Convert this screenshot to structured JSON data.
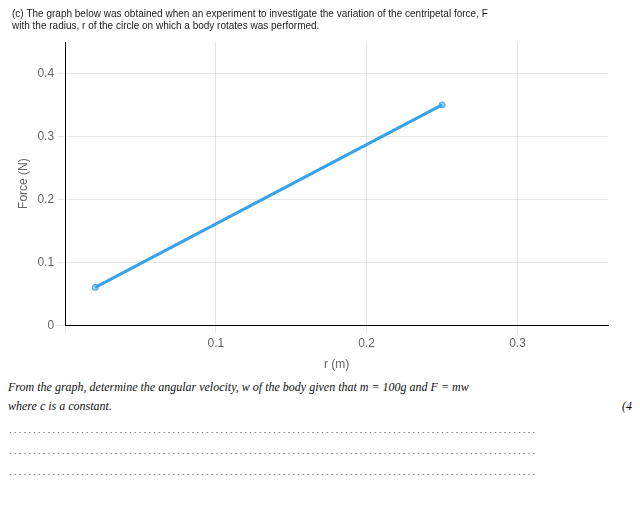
{
  "chart_data": {
    "type": "line",
    "title": [
      "(c) The graph below was obtained when an experiment to investigate the variation of the centripetal force, F",
      "with the radius, r of the circle on which a body rotates was performed."
    ],
    "xlabel": "r (m)",
    "ylabel": "Force (N)",
    "x": [
      0.02,
      0.25
    ],
    "values": [
      0.06,
      0.35
    ],
    "xlim": [
      0,
      0.36
    ],
    "ylim": [
      0,
      0.45
    ],
    "xticks": [
      {
        "value": 0,
        "label": ""
      },
      0.1,
      0.2,
      0.3
    ],
    "yticks": [
      0,
      0.1,
      0.2,
      0.3,
      0.4
    ],
    "grid": true,
    "annotations": [
      "From the graph, determine the angular velocity, w of the body given that m = 100g and F = mw",
      "where c is a constant.",
      "(4",
      "..............................................................................................................",
      "..............................................................................................................",
      ".............................................................................................................."
    ]
  }
}
